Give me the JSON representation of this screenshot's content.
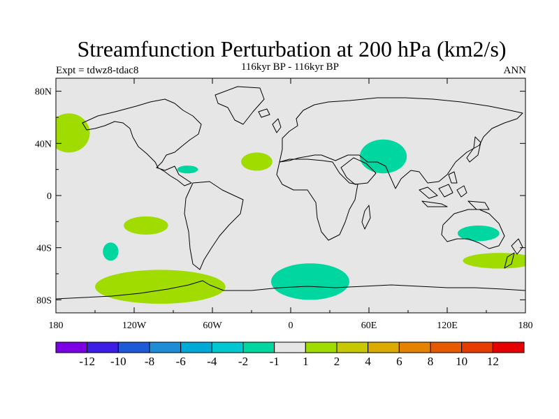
{
  "figure": {
    "title": "Streamfunction Perturbation at 200 hPa (km2/s)",
    "subtitle": "116kyr BP - 116kyr BP",
    "left_label": "Expt = tdwz8-tdac8",
    "right_label": "ANN"
  },
  "map": {
    "projection": "cylindrical equidistant",
    "lon_range": [
      -180,
      180
    ],
    "lat_range": [
      -90,
      90
    ],
    "background_color": "#e6e6e6",
    "lon_ticks": [
      {
        "value": -180,
        "label": "180"
      },
      {
        "value": -120,
        "label": "120W"
      },
      {
        "value": -60,
        "label": "60W"
      },
      {
        "value": 0,
        "label": "0"
      },
      {
        "value": 60,
        "label": "60E"
      },
      {
        "value": 120,
        "label": "120E"
      },
      {
        "value": 180,
        "label": "180"
      }
    ],
    "lat_ticks": [
      {
        "value": 80,
        "label": "80N"
      },
      {
        "value": 40,
        "label": "40N"
      },
      {
        "value": 0,
        "label": "0"
      },
      {
        "value": -40,
        "label": "40S"
      },
      {
        "value": -80,
        "label": "80S"
      }
    ]
  },
  "contour_regions": [
    {
      "name": "north-pacific-positive",
      "level": "1 to 2",
      "color": "#a0dc00",
      "lon": -170,
      "lat": 48,
      "dlon": 16,
      "dlat": 15
    },
    {
      "name": "north-atlantic-positive",
      "level": "1 to 2",
      "color": "#a0dc00",
      "lon": -26,
      "lat": 26,
      "dlon": 12,
      "dlat": 7
    },
    {
      "name": "caribbean-negative",
      "level": "-2 to -1",
      "color": "#00d7a0",
      "lon": -79,
      "lat": 20,
      "dlon": 8,
      "dlat": 3
    },
    {
      "name": "arabia-negative",
      "level": "-2 to -1",
      "color": "#00d7a0",
      "lon": 71,
      "lat": 30,
      "dlon": 18,
      "dlat": 13
    },
    {
      "name": "south-pacific-positive",
      "level": "1 to 2",
      "color": "#a0dc00",
      "lon": -111,
      "lat": -23,
      "dlon": 17,
      "dlat": 7
    },
    {
      "name": "east-pacific-negative",
      "level": "-2 to -1",
      "color": "#00d7a0",
      "lon": -138,
      "lat": -43,
      "dlon": 6,
      "dlat": 7
    },
    {
      "name": "australia-negative",
      "level": "-2 to -1",
      "color": "#00d7a0",
      "lon": 144,
      "lat": -29,
      "dlon": 16,
      "dlat": 6
    },
    {
      "name": "tasman-positive",
      "level": "1 to 2",
      "color": "#a0dc00",
      "lon": 160,
      "lat": -50,
      "dlon": 28,
      "dlat": 6
    },
    {
      "name": "southern-ocean-negative",
      "level": "-2 to -1",
      "color": "#00d7a0",
      "lon": 15,
      "lat": -66,
      "dlon": 30,
      "dlat": 14
    },
    {
      "name": "antarctic-pacific-positive",
      "level": "1 to 2",
      "color": "#a0dc00",
      "lon": -100,
      "lat": -70,
      "dlon": 50,
      "dlat": 13
    }
  ],
  "colorbar": {
    "colors": [
      "#7b00e6",
      "#3c1ee6",
      "#1e5ad7",
      "#1e8cd7",
      "#00aad7",
      "#00c8d2",
      "#00d7a0",
      "#e6e6e6",
      "#a0dc00",
      "#c8c800",
      "#dcaa00",
      "#e68200",
      "#e65a00",
      "#e63c00",
      "#e60000"
    ],
    "labels": [
      "-12",
      "-10",
      "-8",
      "-6",
      "-4",
      "-2",
      "-1",
      "1",
      "2",
      "4",
      "6",
      "8",
      "10",
      "12"
    ]
  }
}
